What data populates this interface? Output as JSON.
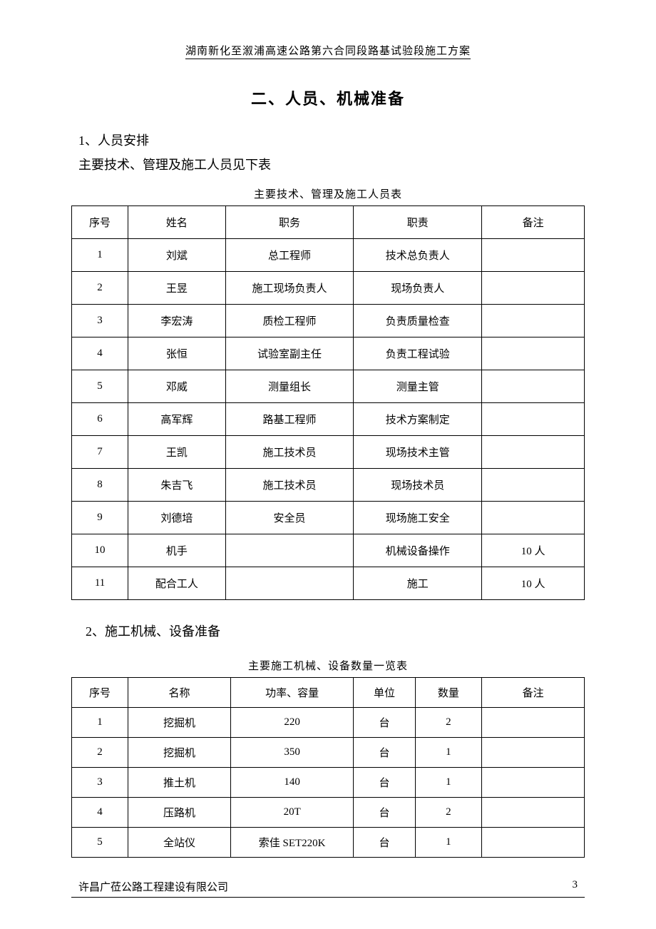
{
  "header": {
    "title": "湖南新化至溆浦高速公路第六合同段路基试验段施工方案"
  },
  "section": {
    "title": "二、人员、机械准备"
  },
  "personnel": {
    "sub_title": "1、人员安排",
    "intro": "主要技术、管理及施工人员见下表",
    "table_title": "主要技术、管理及施工人员表",
    "columns": [
      "序号",
      "姓名",
      "职务",
      "职责",
      "备注"
    ],
    "rows": [
      [
        "1",
        "刘斌",
        "总工程师",
        "技术总负责人",
        ""
      ],
      [
        "2",
        "王昱",
        "施工现场负责人",
        "现场负责人",
        ""
      ],
      [
        "3",
        "李宏涛",
        "质检工程师",
        "负责质量检查",
        ""
      ],
      [
        "4",
        "张恒",
        "试验室副主任",
        "负责工程试验",
        ""
      ],
      [
        "5",
        "邓威",
        "测量组长",
        "测量主管",
        ""
      ],
      [
        "6",
        "高军辉",
        "路基工程师",
        "技术方案制定",
        ""
      ],
      [
        "7",
        "王凯",
        "施工技术员",
        "现场技术主管",
        ""
      ],
      [
        "8",
        "朱吉飞",
        "施工技术员",
        "现场技术员",
        ""
      ],
      [
        "9",
        "刘德培",
        "安全员",
        "现场施工安全",
        ""
      ],
      [
        "10",
        "机手",
        "",
        "机械设备操作",
        "10 人"
      ],
      [
        "11",
        "配合工人",
        "",
        "施工",
        "10 人"
      ]
    ]
  },
  "equipment": {
    "sub_title": "2、施工机械、设备准备",
    "table_title": "主要施工机械、设备数量一览表",
    "columns": [
      "序号",
      "名称",
      "功率、容量",
      "单位",
      "数量",
      "备注"
    ],
    "rows": [
      [
        "1",
        "挖掘机",
        "220",
        "台",
        "2",
        ""
      ],
      [
        "2",
        "挖掘机",
        "350",
        "台",
        "1",
        ""
      ],
      [
        "3",
        "推土机",
        "140",
        "台",
        "1",
        ""
      ],
      [
        "4",
        "压路机",
        "20T",
        "台",
        "2",
        ""
      ],
      [
        "5",
        "全站仪",
        "索佳 SET220K",
        "台",
        "1",
        ""
      ]
    ]
  },
  "footer": {
    "company": "许昌广莅公路工程建设有限公司",
    "page_number": "3"
  }
}
